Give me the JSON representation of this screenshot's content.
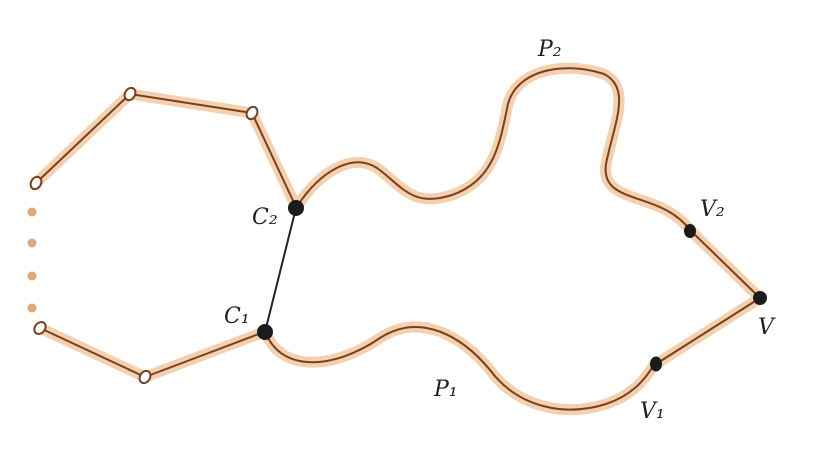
{
  "colors": {
    "halo": "#f1c9a0",
    "ink": "#7a3f1e",
    "edge": "#222222",
    "vertex": "#1b1b1b",
    "hollow_fill": "#ffffff",
    "dots": "#e3a877",
    "label": "#1e1e1e"
  },
  "labels": {
    "c2": "C₂",
    "c1": "C₁",
    "p2": "P₂",
    "p1": "P₁",
    "v2": "V₂",
    "v1": "V₁",
    "v": "V"
  }
}
